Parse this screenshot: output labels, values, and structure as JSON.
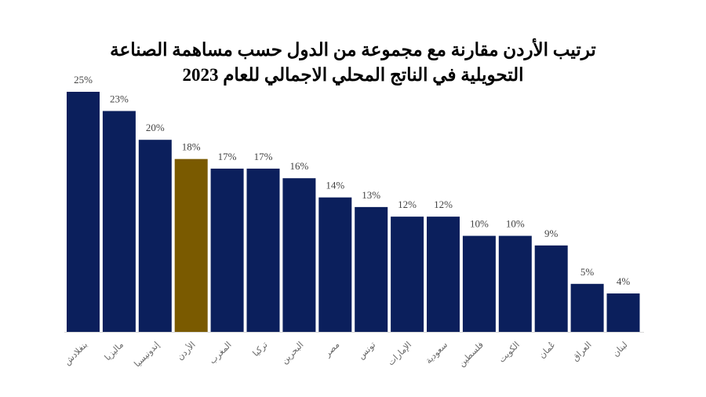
{
  "chart_data": {
    "type": "bar",
    "title_line1": "ترتيب الأردن مقارنة مع مجموعة من الدول حسب مساهمة الصناعة",
    "title_line2": "التحويلية في الناتج المحلي الاجمالي للعام 2023",
    "categories": [
      "بنغلادش",
      "ماليزيا",
      "إندونيسيا",
      "الأردن",
      "المغرب",
      "تركيا",
      "البحرين",
      "مصر",
      "تونس",
      "الإمارات",
      "سعودية",
      "فلسطين",
      "الكويت",
      "عُمان",
      "العراق",
      "لبنان"
    ],
    "values": [
      25,
      23,
      20,
      18,
      17,
      17,
      16,
      14,
      13,
      12,
      12,
      10,
      10,
      9,
      5,
      4
    ],
    "data_labels": [
      "25%",
      "23%",
      "20%",
      "18%",
      "17%",
      "17%",
      "16%",
      "14%",
      "13%",
      "12%",
      "12%",
      "10%",
      "10%",
      "9%",
      "5%",
      "4%"
    ],
    "unit": "%",
    "ylim": [
      0,
      25
    ],
    "grid": false,
    "colors": {
      "default": "#0b1f5c",
      "highlight": "#7a5a00"
    },
    "highlight_category": "الأردن"
  }
}
